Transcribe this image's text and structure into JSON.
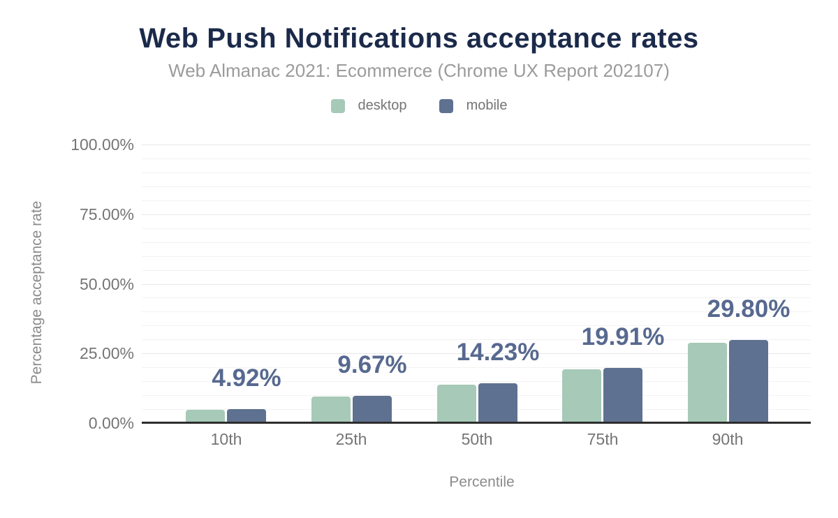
{
  "chart": {
    "title": "Web Push Notifications acceptance rates",
    "subtitle": "Web Almanac 2021: Ecommerce (Chrome UX Report 202107)",
    "xlabel": "Percentile",
    "ylabel": "Percentage acceptance rate"
  },
  "colors": {
    "title": "#1b2a4a",
    "desktop": "#a7c9b8",
    "mobile": "#5e7190",
    "data_label": "#57698f",
    "tick_text": "#757575",
    "axis_line": "#2d2d2d"
  },
  "chart_data": {
    "type": "bar",
    "categories": [
      "10th",
      "25th",
      "50th",
      "75th",
      "90th"
    ],
    "series": [
      {
        "name": "desktop",
        "color": "#a7c9b8",
        "values": [
          4.85,
          9.5,
          13.9,
          19.2,
          28.7
        ]
      },
      {
        "name": "mobile",
        "color": "#5e7190",
        "values": [
          4.92,
          9.67,
          14.23,
          19.91,
          29.8
        ]
      }
    ],
    "data_labels": [
      "4.92%",
      "9.67%",
      "14.23%",
      "19.91%",
      "29.80%"
    ],
    "data_labels_series": "mobile",
    "yticks": [
      "0.00%",
      "25.00%",
      "50.00%",
      "75.00%",
      "100.00%"
    ],
    "ytick_values": [
      0,
      25,
      50,
      75,
      100
    ],
    "title": "Web Push Notifications acceptance rates",
    "subtitle": "Web Almanac 2021: Ecommerce (Chrome UX Report 202107)",
    "xlabel": "Percentile",
    "ylabel": "Percentage acceptance rate",
    "ylim": [
      0,
      100
    ],
    "grid": "horizontal minor gridlines every 5%, major every 25%",
    "legend_position": "top"
  }
}
